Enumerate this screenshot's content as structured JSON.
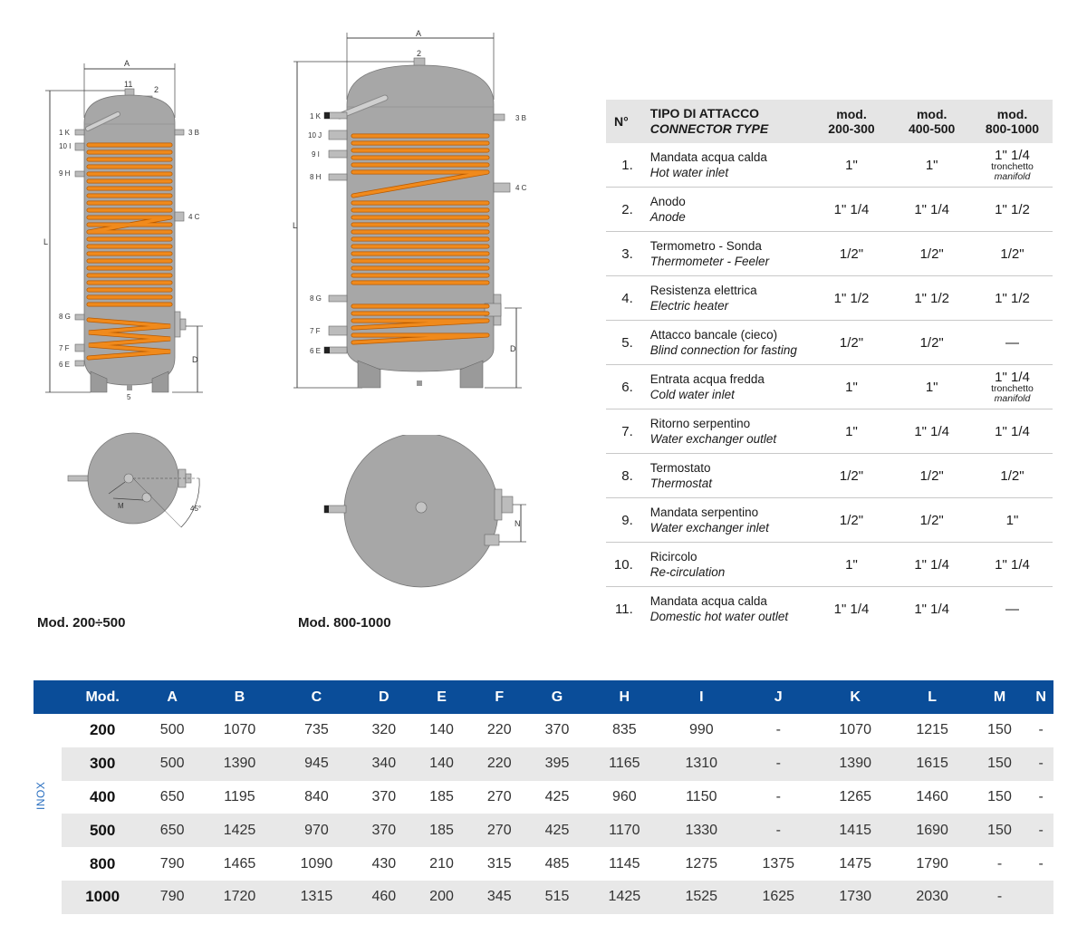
{
  "drawings": {
    "small": {
      "caption": "Mod. 200÷500",
      "labels": {
        "A": "A",
        "L": "L",
        "D": "D",
        "M": "M",
        "angle": "45°",
        "top11": "11",
        "top2": "2",
        "bottom5": "5",
        "k1": "1 K",
        "i10": "10 I",
        "h9": "9 H",
        "b3": "3 B",
        "c4": "4 C",
        "g8": "8 G",
        "f7": "7 F",
        "e6": "6 E"
      }
    },
    "large": {
      "caption": "Mod. 800-1000",
      "labels": {
        "A": "A",
        "L": "L",
        "D": "D",
        "N": "N",
        "top2": "2",
        "k1": "1 K",
        "j10": "10 J",
        "i9": "9 I",
        "h8": "8 H",
        "b3": "3 B",
        "c4": "4 C",
        "g8": "8 G",
        "f7": "7 F",
        "e6": "6 E"
      }
    }
  },
  "connectors": {
    "headers": {
      "n": "N°",
      "type_it": "TIPO DI ATTACCO",
      "type_en": "CONNECTOR TYPE",
      "mod1a": "mod.",
      "mod1b": "200-300",
      "mod2a": "mod.",
      "mod2b": "400-500",
      "mod3a": "mod.",
      "mod3b": "800-1000"
    },
    "rows": [
      {
        "n": "1.",
        "it": "Mandata acqua calda",
        "en": "Hot water inlet",
        "v1": "1\"",
        "v2": "1\"",
        "v3": "1\" 1/4",
        "v3b": "tronchetto",
        "v3c": "manifold"
      },
      {
        "n": "2.",
        "it": "Anodo",
        "en": "Anode",
        "v1": "1\" 1/4",
        "v2": "1\" 1/4",
        "v3": "1\" 1/2"
      },
      {
        "n": "3.",
        "it": "Termometro - Sonda",
        "en": "Thermometer - Feeler",
        "v1": "1/2\"",
        "v2": "1/2\"",
        "v3": "1/2\""
      },
      {
        "n": "4.",
        "it": "Resistenza elettrica",
        "en": "Electric heater",
        "v1": "1\" 1/2",
        "v2": "1\" 1/2",
        "v3": "1\" 1/2"
      },
      {
        "n": "5.",
        "it": "Attacco bancale (cieco)",
        "en": "Blind connection for fasting",
        "v1": "1/2\"",
        "v2": "1/2\"",
        "v3": "—"
      },
      {
        "n": "6.",
        "it": "Entrata acqua fredda",
        "en": "Cold water inlet",
        "v1": "1\"",
        "v2": "1\"",
        "v3": "1\" 1/4",
        "v3b": "tronchetto",
        "v3c": "manifold"
      },
      {
        "n": "7.",
        "it": "Ritorno serpentino",
        "en": "Water exchanger outlet",
        "v1": "1\"",
        "v2": "1\" 1/4",
        "v3": "1\" 1/4"
      },
      {
        "n": "8.",
        "it": "Termostato",
        "en": "Thermostat",
        "v1": "1/2\"",
        "v2": "1/2\"",
        "v3": "1/2\""
      },
      {
        "n": "9.",
        "it": "Mandata serpentino",
        "en": "Water exchanger inlet",
        "v1": "1/2\"",
        "v2": "1/2\"",
        "v3": "1\""
      },
      {
        "n": "10.",
        "it": "Ricircolo",
        "en": "Re-circulation",
        "v1": "1\"",
        "v2": "1\" 1/4",
        "v3": "1\" 1/4"
      },
      {
        "n": "11.",
        "it": "Mandata acqua calda",
        "en": "Domestic hot water outlet",
        "v1": "1\" 1/4",
        "v2": "1\" 1/4",
        "v3": "—"
      }
    ]
  },
  "dimensions": {
    "side_label": "INOX",
    "headers": [
      "Mod.",
      "A",
      "B",
      "C",
      "D",
      "E",
      "F",
      "G",
      "H",
      "I",
      "J",
      "K",
      "L",
      "M",
      "N"
    ],
    "rows": [
      [
        "200",
        "500",
        "1070",
        "735",
        "320",
        "140",
        "220",
        "370",
        "835",
        "990",
        "-",
        "1070",
        "1215",
        "150",
        "-"
      ],
      [
        "300",
        "500",
        "1390",
        "945",
        "340",
        "140",
        "220",
        "395",
        "1165",
        "1310",
        "-",
        "1390",
        "1615",
        "150",
        "-"
      ],
      [
        "400",
        "650",
        "1195",
        "840",
        "370",
        "185",
        "270",
        "425",
        "960",
        "1150",
        "-",
        "1265",
        "1460",
        "150",
        "-"
      ],
      [
        "500",
        "650",
        "1425",
        "970",
        "370",
        "185",
        "270",
        "425",
        "1170",
        "1330",
        "-",
        "1415",
        "1690",
        "150",
        "-"
      ],
      [
        "800",
        "790",
        "1465",
        "1090",
        "430",
        "210",
        "315",
        "485",
        "1145",
        "1275",
        "1375",
        "1475",
        "1790",
        "-",
        "-"
      ],
      [
        "1000",
        "790",
        "1720",
        "1315",
        "460",
        "200",
        "345",
        "515",
        "1425",
        "1525",
        "1625",
        "1730",
        "2030",
        "-",
        ""
      ]
    ]
  },
  "colors": {
    "tank": "#a7a7a7",
    "coil": "#f08a1c",
    "coil_edge": "#b85a00",
    "header_blue": "#0a4d99",
    "inox_blue": "#2a6fc0"
  }
}
